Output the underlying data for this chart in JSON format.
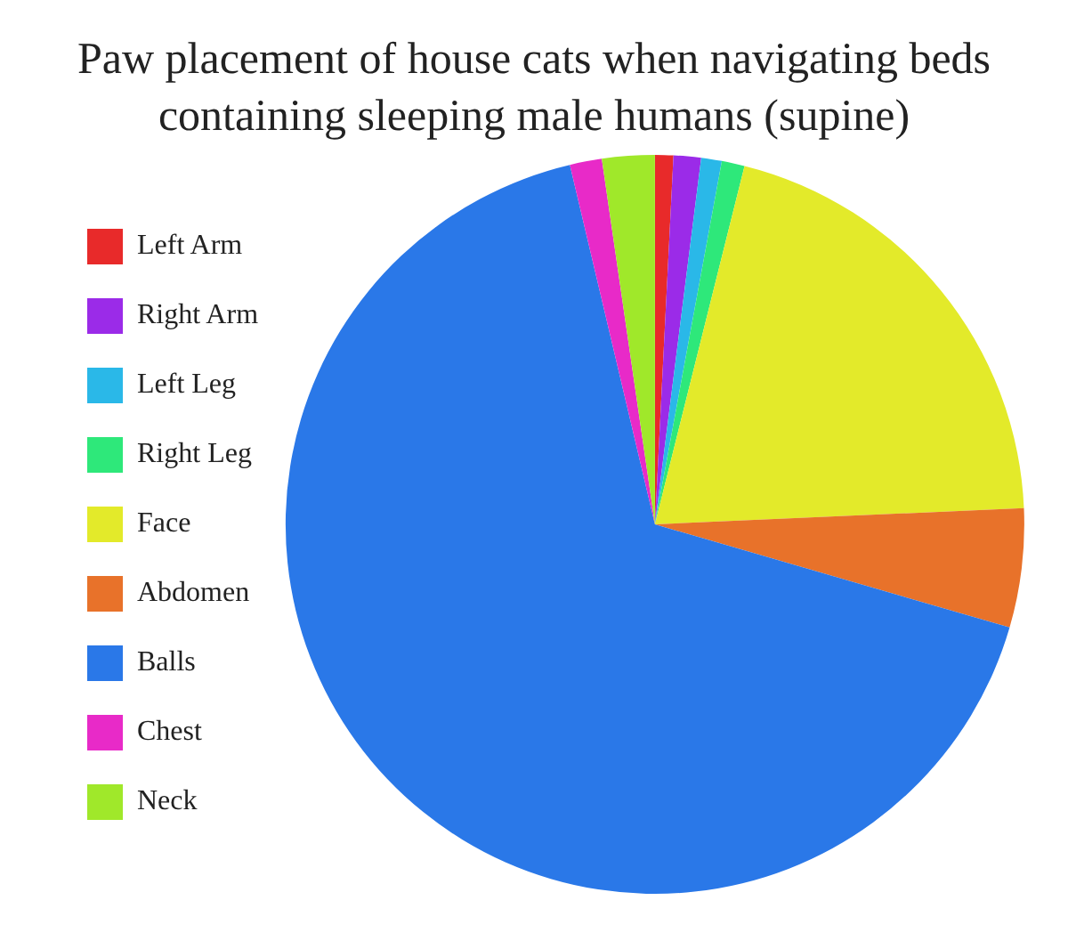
{
  "chart_data": {
    "type": "pie",
    "title": "Paw placement of house cats when navigating beds containing sleeping male humans (supine)",
    "categories": [
      "Left Arm",
      "Right Arm",
      "Left Leg",
      "Right Leg",
      "Face",
      "Abdomen",
      "Balls",
      "Chest",
      "Neck"
    ],
    "values": [
      0.8,
      1.2,
      0.9,
      1.0,
      20.4,
      5.2,
      66.8,
      1.4,
      2.3
    ],
    "colors": [
      "#e82a2a",
      "#9b2be8",
      "#2ab8e8",
      "#2ee87a",
      "#e3ea2a",
      "#e8722a",
      "#2a78e8",
      "#e82ac8",
      "#a0e82a"
    ],
    "legend": "left"
  }
}
